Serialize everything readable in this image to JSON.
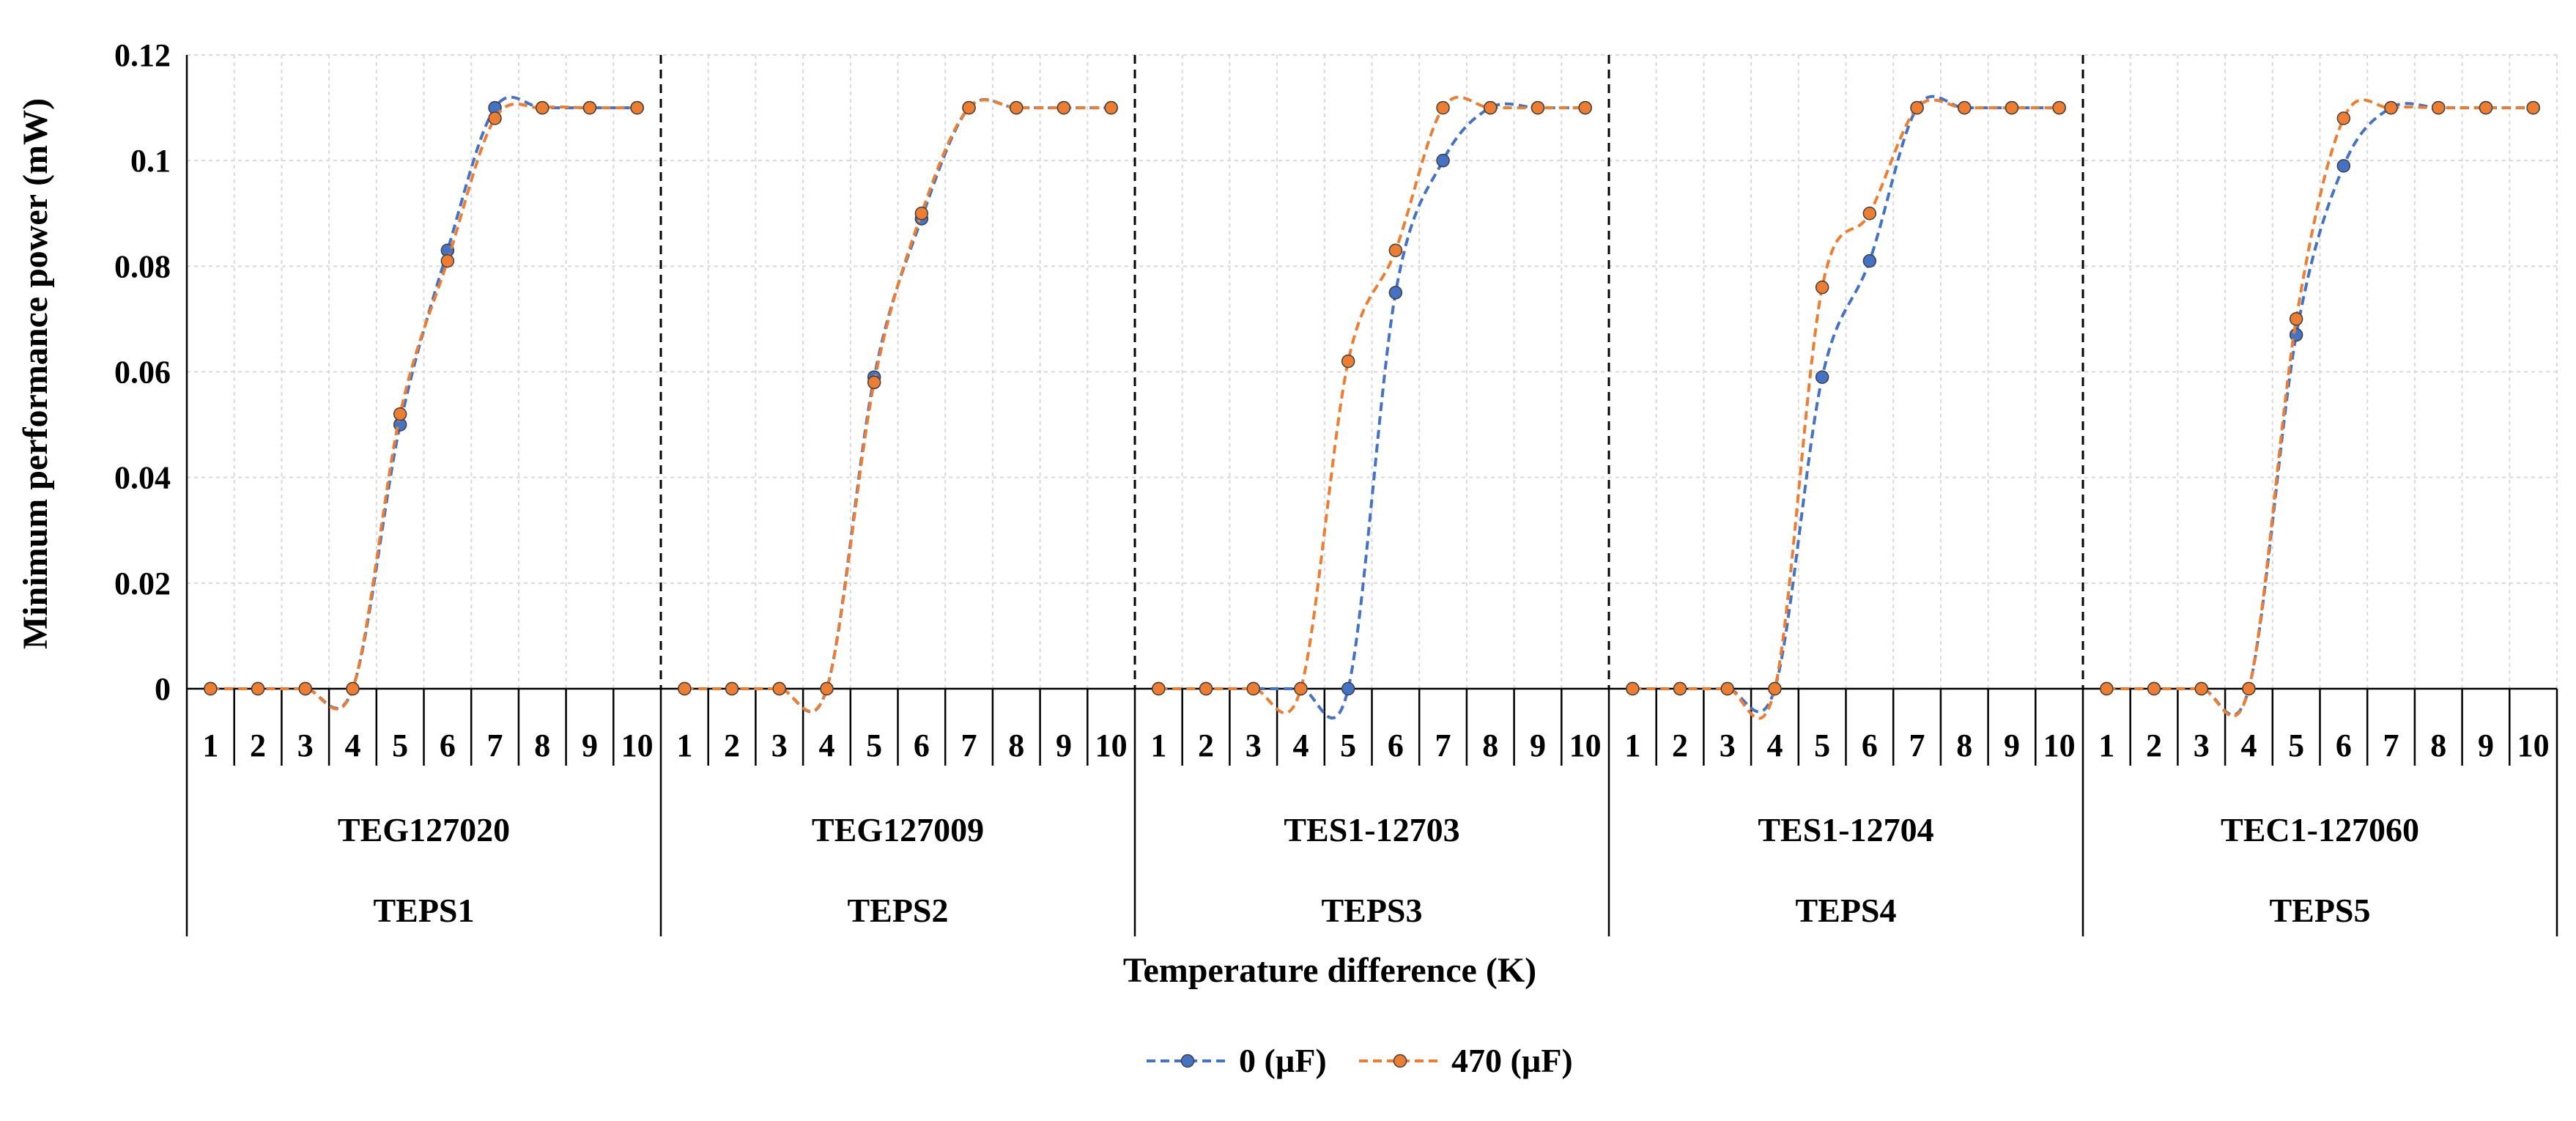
{
  "chart_data": {
    "type": "line",
    "ylabel": "Minimum performance power (mW)",
    "xlabel": "Temperature difference (K)",
    "ylim": [
      0,
      0.12
    ],
    "yticks": [
      "0",
      "0.02",
      "0.04",
      "0.06",
      "0.08",
      "0.1",
      "0.12"
    ],
    "ytick_values": [
      0,
      0.02,
      0.04,
      0.06,
      0.08,
      0.1,
      0.12
    ],
    "x_ticks": [
      "1",
      "2",
      "3",
      "4",
      "5",
      "6",
      "7",
      "8",
      "9",
      "10"
    ],
    "groups": [
      {
        "device": "TEG127020",
        "system": "TEPS1"
      },
      {
        "device": "TEG127009",
        "system": "TEPS2"
      },
      {
        "device": "TES1-12703",
        "system": "TEPS3"
      },
      {
        "device": "TES1-12704",
        "system": "TEPS4"
      },
      {
        "device": "TEC1-127060",
        "system": "TEPS5"
      }
    ],
    "series": [
      {
        "name": "0 (µF)",
        "color": "#4472c4",
        "values": [
          [
            0,
            0,
            0,
            0,
            0.05,
            0.083,
            0.11,
            0.11,
            0.11,
            0.11
          ],
          [
            0,
            0,
            0,
            0,
            0.059,
            0.089,
            0.11,
            0.11,
            0.11,
            0.11
          ],
          [
            0,
            0,
            0,
            0,
            0,
            0.075,
            0.1,
            0.11,
            0.11,
            0.11
          ],
          [
            0,
            0,
            0,
            0,
            0.059,
            0.081,
            0.11,
            0.11,
            0.11,
            0.11
          ],
          [
            0,
            0,
            0,
            0,
            0.067,
            0.099,
            0.11,
            0.11,
            0.11,
            0.11
          ]
        ]
      },
      {
        "name": "470 (µF)",
        "color": "#ed7d31",
        "values": [
          [
            0,
            0,
            0,
            0,
            0.052,
            0.081,
            0.108,
            0.11,
            0.11,
            0.11
          ],
          [
            0,
            0,
            0,
            0,
            0.058,
            0.09,
            0.11,
            0.11,
            0.11,
            0.11
          ],
          [
            0,
            0,
            0,
            0,
            0.062,
            0.083,
            0.11,
            0.11,
            0.11,
            0.11
          ],
          [
            0,
            0,
            0,
            0,
            0.076,
            0.09,
            0.11,
            0.11,
            0.11,
            0.11
          ],
          [
            0,
            0,
            0,
            0,
            0.07,
            0.108,
            0.11,
            0.11,
            0.11,
            0.11
          ]
        ]
      }
    ],
    "grid": true,
    "legend_position": "bottom-center"
  }
}
